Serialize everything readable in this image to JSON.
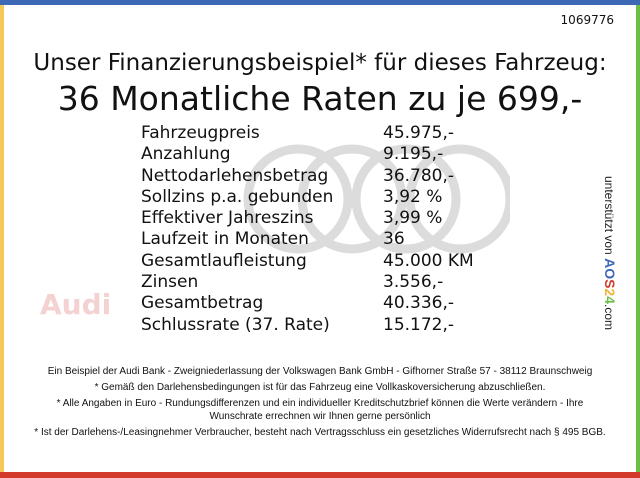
{
  "reference": "1069776",
  "headline": "Unser Finanzierungsbeispiel* für dieses Fahrzeug:",
  "subheadline": "36 Monatliche Raten zu je 699,-",
  "watermark": "Audi",
  "rows": [
    {
      "label": "Fahrzeugpreis",
      "value": "45.975,-"
    },
    {
      "label": "Anzahlung",
      "value": "9.195,-"
    },
    {
      "label": "Nettodarlehensbetrag",
      "value": "36.780,-"
    },
    {
      "label": "Sollzins p.a. gebunden",
      "value": "3,92 %"
    },
    {
      "label": "Effektiver Jahreszins",
      "value": "3,99 %"
    },
    {
      "label": "Laufzeit in Monaten",
      "value": "36"
    },
    {
      "label": "Gesamtlaufleistung",
      "value": "45.000 KM"
    },
    {
      "label": "Zinsen",
      "value": "3.556,-"
    },
    {
      "label": "Gesamtbetrag",
      "value": "40.336,-"
    },
    {
      "label": "Schlussrate (37. Rate)",
      "value": "15.172,-"
    }
  ],
  "sidebar": {
    "prefix": "unterstützt von",
    "brand": "AOS24",
    "suffix": ".com"
  },
  "footer": [
    "Ein Beispiel der Audi Bank - Zweigniederlassung der Volkswagen Bank GmbH - Gifhorner Straße 57 - 38112 Braunschweig",
    "* Gemäß den Darlehensbedingungen ist für das Fahrzeug eine Vollkaskoversicherung abzuschließen.",
    "* Alle Angaben in Euro - Rundungsdifferenzen und ein individueller Kreditschutzbrief können die Werte verändern - Ihre Wunschrate errechnen wir Ihnen gerne persönlich",
    "* Ist der Darlehens-/Leasingnehmer Verbraucher, besteht nach Vertragsschluss ein gesetzliches Widerrufsrecht nach § 495 BGB."
  ],
  "colors": {
    "top": "#3d68b6",
    "left": "#f6c85a",
    "right": "#6cbf45",
    "bottom": "#d33a2c"
  }
}
